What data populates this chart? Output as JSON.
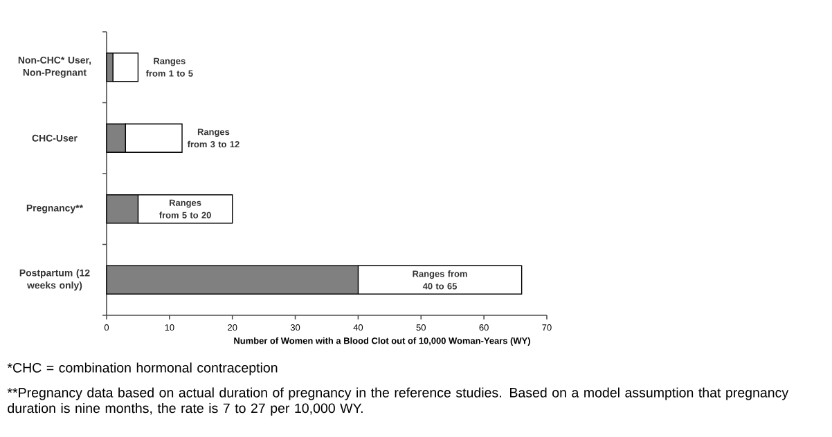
{
  "chart_data": {
    "type": "bar",
    "orientation": "horizontal",
    "stacked": true,
    "categories": [
      "Non-CHC* User, Non-Pregnant",
      "CHC-User",
      "Pregnancy**",
      "Postpartum (12 weeks only)"
    ],
    "series": [
      {
        "color": "#808080",
        "values": [
          1,
          3,
          5,
          40
        ]
      },
      {
        "color": "#ffffff",
        "values": [
          4,
          9,
          15,
          26
        ],
        "value_labels": [
          "Ranges from 1 to 5",
          "Ranges from 3 to 12",
          "Ranges from 5 to 20",
          "Ranges from 40 to 65"
        ]
      }
    ],
    "xlim": [
      0,
      70
    ],
    "xticks": [
      0,
      10,
      20,
      30,
      40,
      50,
      60,
      70
    ],
    "xlabel": "Number of Women with a Blood Clot out of 10,000 Woman-Years (WY)",
    "annotations": [
      "*CHC = combination hormonal contraception",
      "**Pregnancy data based on actual duration of pregnancy in the reference studies. Based on a model assumption that pregnancy duration is nine months, the rate is 7 to 27 per 10,000 WY."
    ]
  }
}
